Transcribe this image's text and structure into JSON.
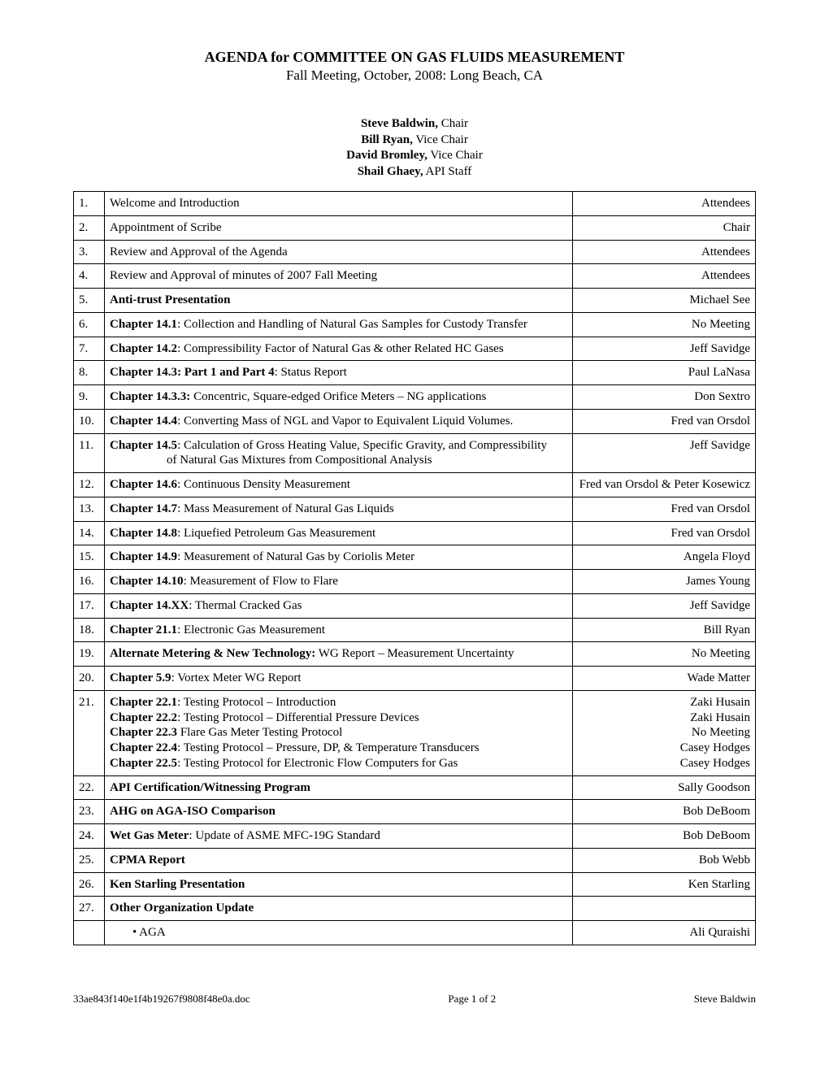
{
  "title": "AGENDA for COMMITTEE ON GAS FLUIDS MEASUREMENT",
  "subtitle": "Fall Meeting, October, 2008: Long Beach, CA",
  "officers": [
    {
      "name": "Steve Baldwin,",
      "role": " Chair"
    },
    {
      "name": "Bill Ryan,",
      "role": " Vice Chair"
    },
    {
      "name": "David Bromley,",
      "role": " Vice Chair"
    },
    {
      "name": "Shail Ghaey,",
      "role": " API Staff"
    }
  ],
  "rows": [
    {
      "num": "1.",
      "desc_plain": "Welcome and Introduction",
      "resp": "Attendees"
    },
    {
      "num": "2.",
      "desc_plain": "Appointment of Scribe",
      "resp": "Chair"
    },
    {
      "num": "3.",
      "desc_plain": "Review and Approval of the Agenda",
      "resp": "Attendees"
    },
    {
      "num": "4.",
      "desc_plain": "Review and Approval of minutes of 2007 Fall Meeting",
      "resp": "Attendees"
    },
    {
      "num": "5.",
      "desc_bold": "Anti-trust Presentation",
      "resp": "Michael See"
    },
    {
      "num": "6.",
      "desc_bold": "Chapter 14.1",
      "desc_rest": ": Collection and Handling of Natural Gas Samples for Custody Transfer",
      "resp": "No Meeting"
    },
    {
      "num": "7.",
      "desc_bold": "Chapter 14.2",
      "desc_rest": ": Compressibility Factor of Natural Gas & other Related HC Gases",
      "resp": "Jeff Savidge"
    },
    {
      "num": "8.",
      "desc_bold": "Chapter 14.3",
      "desc_bold2": ": Part 1 and Part 4",
      "desc_rest": ": Status Report",
      "resp": "Paul LaNasa"
    },
    {
      "num": "9.",
      "desc_bold": "Chapter 14.3.3:",
      "desc_rest": " Concentric, Square-edged Orifice Meters – NG applications",
      "resp": "Don Sextro"
    },
    {
      "num": "10.",
      "desc_bold": "Chapter 14.4",
      "desc_rest": ": Converting Mass of NGL and Vapor to Equivalent Liquid Volumes.",
      "resp": "Fred van Orsdol"
    },
    {
      "num": "11.",
      "desc_bold": "Chapter 14.5",
      "desc_rest": ": Calculation of Gross Heating Value, Specific Gravity, and Compressibility",
      "desc_cont": "of Natural Gas Mixtures from Compositional Analysis",
      "resp": "Jeff Savidge"
    },
    {
      "num": "12.",
      "desc_bold": "Chapter 14.6",
      "desc_rest": ": Continuous Density Measurement",
      "resp": "Fred van Orsdol & Peter Kosewicz"
    },
    {
      "num": "13.",
      "desc_bold": "Chapter 14.7",
      "desc_rest": ": Mass Measurement of Natural Gas Liquids",
      "resp": "Fred van Orsdol"
    },
    {
      "num": "14.",
      "desc_bold": "Chapter 14.8",
      "desc_rest": ": Liquefied Petroleum Gas Measurement",
      "resp": "Fred van Orsdol"
    },
    {
      "num": "15.",
      "desc_bold": "Chapter 14.9",
      "desc_rest": ": Measurement of Natural Gas by Coriolis Meter",
      "resp": "Angela Floyd"
    },
    {
      "num": "16.",
      "desc_bold": "Chapter 14.10",
      "desc_rest": ": Measurement of Flow to Flare",
      "resp": "James Young"
    },
    {
      "num": "17.",
      "desc_bold": "Chapter 14.XX",
      "desc_rest": ": Thermal Cracked Gas",
      "resp": "Jeff Savidge"
    },
    {
      "num": "18.",
      "desc_bold": "Chapter 21.1",
      "desc_rest": ": Electronic Gas Measurement",
      "resp": "Bill Ryan"
    },
    {
      "num": "19.",
      "desc_bold": "Alternate Metering & New Technology:",
      "desc_rest": " WG Report – Measurement Uncertainty",
      "resp": "No Meeting"
    },
    {
      "num": "20.",
      "desc_bold": "Chapter 5.9",
      "desc_rest": ": Vortex Meter WG Report",
      "resp": "Wade Matter"
    }
  ],
  "row21": {
    "num": "21.",
    "lines": [
      {
        "bold": "Chapter 22.1",
        "rest": ": Testing Protocol – Introduction",
        "resp": "Zaki Husain"
      },
      {
        "bold": "Chapter 22.2",
        "rest": ": Testing Protocol – Differential Pressure Devices",
        "resp": "Zaki Husain"
      },
      {
        "bold": "Chapter 22.3",
        "rest": " Flare Gas Meter Testing Protocol",
        "resp": "No Meeting"
      },
      {
        "bold": "Chapter 22.4",
        "rest": ": Testing Protocol – Pressure, DP, & Temperature Transducers",
        "resp": "Casey Hodges"
      },
      {
        "bold": "Chapter 22.5",
        "rest": ": Testing Protocol for Electronic Flow Computers for Gas",
        "resp": "Casey Hodges"
      }
    ]
  },
  "rows_after": [
    {
      "num": "22.",
      "desc_bold": "API Certification/Witnessing Program",
      "resp": "Sally Goodson"
    },
    {
      "num": "23.",
      "desc_bold": "AHG on AGA-ISO Comparison",
      "resp": "Bob DeBoom"
    },
    {
      "num": "24.",
      "desc_bold": "Wet Gas Meter",
      "desc_rest": ": Update of ASME MFC-19G Standard",
      "resp": "Bob DeBoom"
    },
    {
      "num": "25.",
      "desc_bold": "CPMA Report",
      "resp": "Bob Webb"
    },
    {
      "num": "26.",
      "desc_bold": "Ken Starling Presentation",
      "resp": "Ken Starling"
    },
    {
      "num": "27.",
      "desc_bold": "Other Organization Update",
      "resp": ""
    }
  ],
  "sub_rows": [
    {
      "bullet": "•",
      "label": "AGA",
      "resp": "Ali Quraishi"
    }
  ],
  "footer": {
    "left": "33ae843f140e1f4b19267f9808f48e0a.doc",
    "center": "Page 1 of 2",
    "right": "Steve Baldwin"
  }
}
